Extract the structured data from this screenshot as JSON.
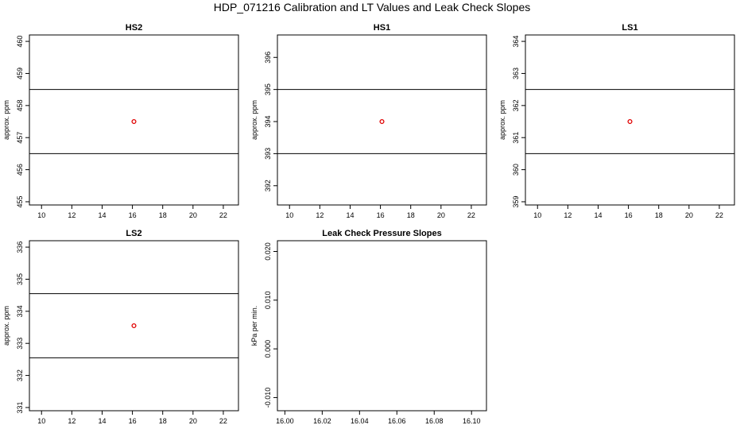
{
  "title": "HDP_071216  Calibration and LT Values and Leak Check Slopes",
  "chart_data": [
    {
      "type": "scatter",
      "title": "HS2",
      "xlabel": "",
      "ylabel": "approx. ppm",
      "xlim": [
        9.2,
        23.0
      ],
      "ylim": [
        454.9,
        460.2
      ],
      "xticks": [
        "10",
        "12",
        "14",
        "16",
        "18",
        "20",
        "22"
      ],
      "yticks": [
        "455",
        "456",
        "457",
        "458",
        "459",
        "460"
      ],
      "hlines": [
        456.5,
        458.5
      ],
      "points": [
        {
          "x": 16.1,
          "y": 457.5
        }
      ],
      "point_color": "#e00000"
    },
    {
      "type": "scatter",
      "title": "HS1",
      "xlabel": "",
      "ylabel": "approx. ppm",
      "xlim": [
        9.2,
        23.0
      ],
      "ylim": [
        391.4,
        396.7
      ],
      "xticks": [
        "10",
        "12",
        "14",
        "16",
        "18",
        "20",
        "22"
      ],
      "yticks": [
        "392",
        "393",
        "394",
        "395",
        "396"
      ],
      "hlines": [
        393.0,
        395.0
      ],
      "points": [
        {
          "x": 16.1,
          "y": 394.0
        }
      ],
      "point_color": "#e00000"
    },
    {
      "type": "scatter",
      "title": "LS1",
      "xlabel": "",
      "ylabel": "approx. ppm",
      "xlim": [
        9.2,
        23.0
      ],
      "ylim": [
        358.9,
        364.2
      ],
      "xticks": [
        "10",
        "12",
        "14",
        "16",
        "18",
        "20",
        "22"
      ],
      "yticks": [
        "359",
        "360",
        "361",
        "362",
        "363",
        "364"
      ],
      "hlines": [
        360.5,
        362.5
      ],
      "points": [
        {
          "x": 16.1,
          "y": 361.5
        }
      ],
      "point_color": "#e00000"
    },
    {
      "type": "scatter",
      "title": "LS2",
      "xlabel": "",
      "ylabel": "approx. ppm",
      "xlim": [
        9.2,
        23.0
      ],
      "ylim": [
        330.9,
        336.2
      ],
      "xticks": [
        "10",
        "12",
        "14",
        "16",
        "18",
        "20",
        "22"
      ],
      "yticks": [
        "331",
        "332",
        "333",
        "334",
        "335",
        "336"
      ],
      "hlines": [
        332.55,
        334.55
      ],
      "points": [
        {
          "x": 16.1,
          "y": 333.55
        }
      ],
      "point_color": "#e00000"
    },
    {
      "type": "scatter",
      "title": "Leak Check Pressure Slopes",
      "xlabel": "",
      "ylabel": "kPa per min.",
      "xlim": [
        15.996,
        16.108
      ],
      "ylim": [
        -0.0127,
        0.0222
      ],
      "xticks": [
        "16.00",
        "16.02",
        "16.04",
        "16.06",
        "16.08",
        "16.10"
      ],
      "yticks": [
        "-0.010",
        "0.000",
        "0.010",
        "0.020"
      ],
      "hlines": [],
      "points": [],
      "point_color": "#e00000"
    }
  ]
}
